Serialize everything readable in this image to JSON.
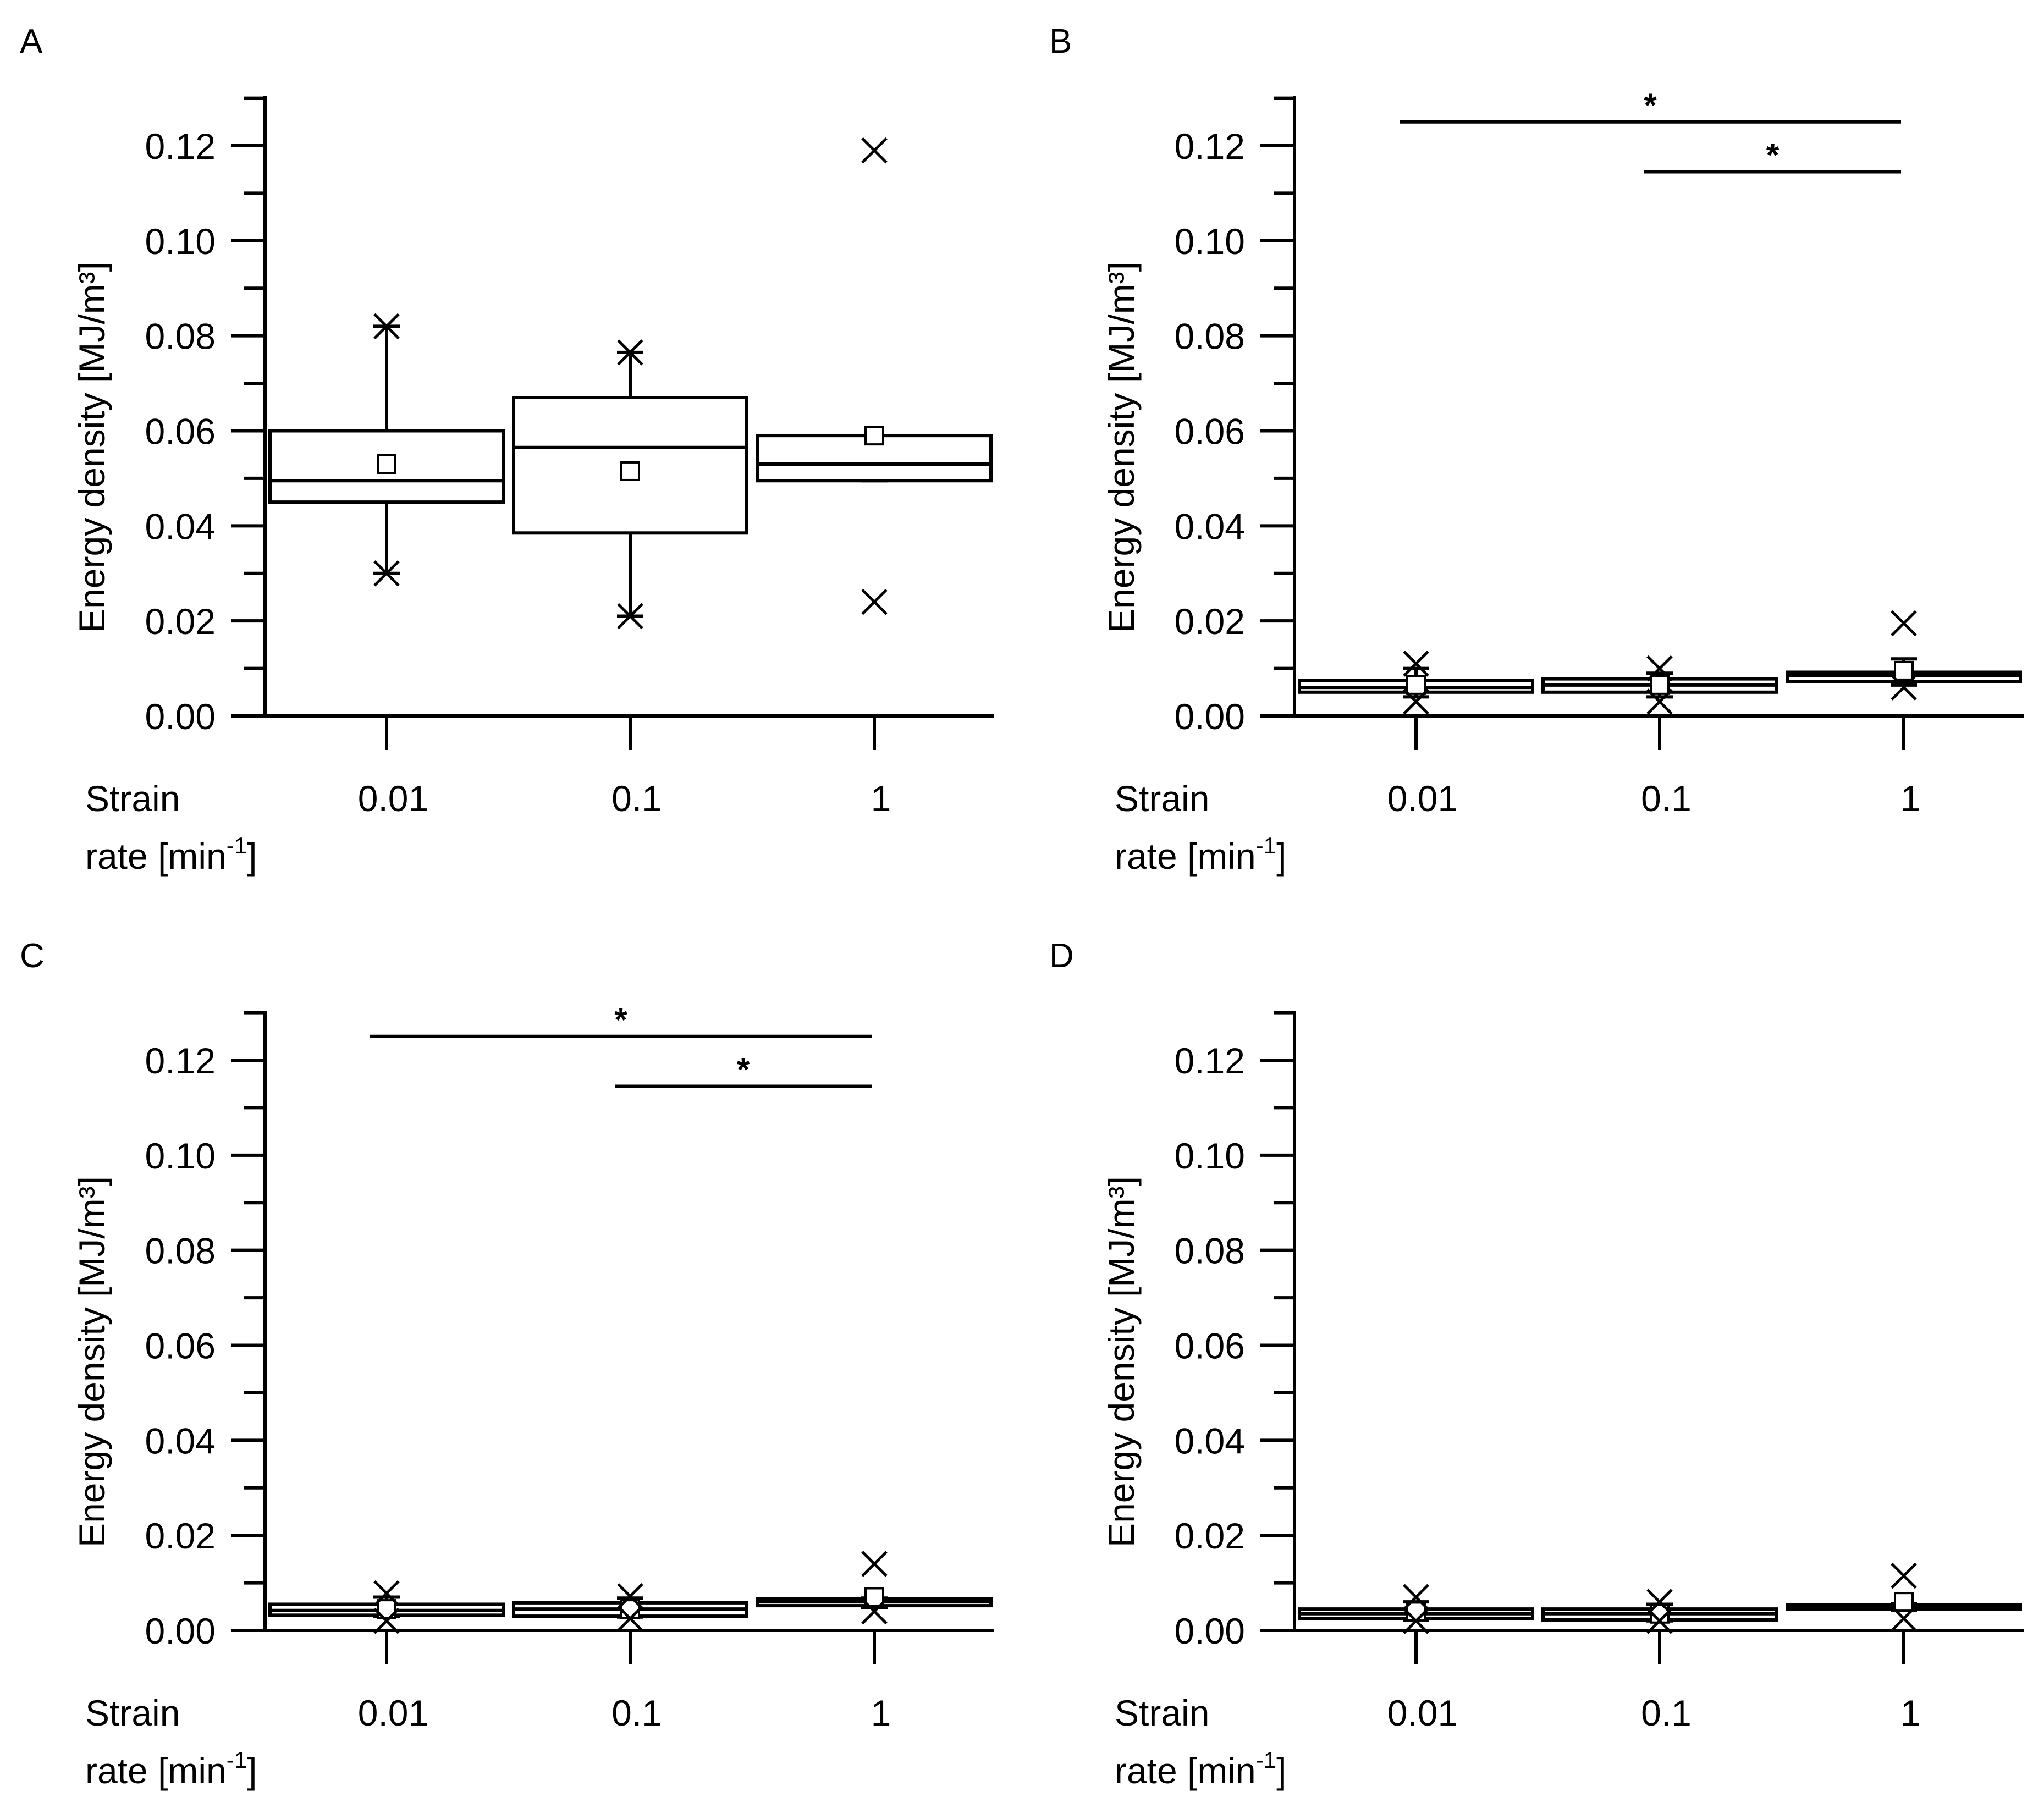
{
  "chart_data": [
    {
      "panel": "A",
      "type": "box",
      "ylabel": "Energy density [MJ/m³]",
      "xlabel_line1": "Strain",
      "xlabel_line2": "rate [min",
      "xlabel_sup": "-1",
      "xlabel_end": "]",
      "ylim": [
        0,
        0.13
      ],
      "yticks": [
        "0.00",
        "0.02",
        "0.04",
        "0.06",
        "0.08",
        "0.10",
        "0.12"
      ],
      "categories": [
        "0.01",
        "0.1",
        "1"
      ],
      "boxes": [
        {
          "q1": 0.045,
          "median": 0.0495,
          "q3": 0.06,
          "whisker_low": 0.03,
          "whisker_high": 0.082,
          "mean": 0.053,
          "outliers": [
            0.082,
            0.03
          ]
        },
        {
          "q1": 0.0385,
          "median": 0.0565,
          "q3": 0.067,
          "whisker_low": 0.021,
          "whisker_high": 0.0765,
          "mean": 0.0515,
          "outliers": [
            0.0765,
            0.021
          ]
        },
        {
          "q1": 0.0495,
          "median": 0.053,
          "q3": 0.059,
          "whisker_low": 0.0495,
          "whisker_high": 0.059,
          "mean": 0.059,
          "outliers": [
            0.119,
            0.024
          ]
        }
      ],
      "significance": []
    },
    {
      "panel": "B",
      "type": "box",
      "ylabel": "Energy density [MJ/m³]",
      "xlabel_line1": "Strain",
      "xlabel_line2": "rate [min",
      "xlabel_sup": "-1",
      "xlabel_end": "]",
      "ylim": [
        0,
        0.13
      ],
      "yticks": [
        "0.00",
        "0.02",
        "0.04",
        "0.06",
        "0.08",
        "0.10",
        "0.12"
      ],
      "categories": [
        "0.01",
        "0.1",
        "1"
      ],
      "boxes": [
        {
          "q1": 0.005,
          "median": 0.006,
          "q3": 0.0075,
          "whisker_low": 0.004,
          "whisker_high": 0.01,
          "mean": 0.0065,
          "outliers": [
            0.011,
            0.003
          ]
        },
        {
          "q1": 0.005,
          "median": 0.0065,
          "q3": 0.0078,
          "whisker_low": 0.004,
          "whisker_high": 0.009,
          "mean": 0.0065,
          "outliers": [
            0.01,
            0.003
          ]
        },
        {
          "q1": 0.0072,
          "median": 0.0085,
          "q3": 0.0092,
          "whisker_low": 0.0065,
          "whisker_high": 0.012,
          "mean": 0.0095,
          "outliers": [
            0.0195,
            0.006
          ]
        }
      ],
      "significance": [
        {
          "from": 0,
          "to": 2,
          "y": 0.125,
          "label": "*"
        },
        {
          "from": 1,
          "to": 2,
          "y": 0.1145,
          "label": "*"
        }
      ]
    },
    {
      "panel": "C",
      "type": "box",
      "ylabel": "Energy density [MJ/m³]",
      "xlabel_line1": "Strain",
      "xlabel_line2": "rate [min",
      "xlabel_sup": "-1",
      "xlabel_end": "]",
      "ylim": [
        0,
        0.13
      ],
      "yticks": [
        "0.00",
        "0.02",
        "0.04",
        "0.06",
        "0.08",
        "0.10",
        "0.12"
      ],
      "categories": [
        "0.01",
        "0.1",
        "1"
      ],
      "boxes": [
        {
          "q1": 0.0032,
          "median": 0.0042,
          "q3": 0.0055,
          "whisker_low": 0.003,
          "whisker_high": 0.007,
          "mean": 0.0045,
          "outliers": [
            0.0078,
            0.002
          ]
        },
        {
          "q1": 0.003,
          "median": 0.0045,
          "q3": 0.0058,
          "whisker_low": 0.0028,
          "whisker_high": 0.0068,
          "mean": 0.0045,
          "outliers": [
            0.0072,
            0.0025
          ]
        },
        {
          "q1": 0.0052,
          "median": 0.006,
          "q3": 0.0066,
          "whisker_low": 0.0048,
          "whisker_high": 0.0068,
          "mean": 0.007,
          "outliers": [
            0.014,
            0.004
          ]
        }
      ],
      "significance": [
        {
          "from": 0,
          "to": 2,
          "y": 0.125,
          "label": "*"
        },
        {
          "from": 1,
          "to": 2,
          "y": 0.1145,
          "label": "*"
        }
      ]
    },
    {
      "panel": "D",
      "type": "box",
      "ylabel": "Energy density [MJ/m³]",
      "xlabel_line1": "Strain",
      "xlabel_line2": "rate [min",
      "xlabel_sup": "-1",
      "xlabel_end": "]",
      "ylim": [
        0,
        0.13
      ],
      "yticks": [
        "0.00",
        "0.02",
        "0.04",
        "0.06",
        "0.08",
        "0.10",
        "0.12"
      ],
      "categories": [
        "0.01",
        "0.1",
        "1"
      ],
      "boxes": [
        {
          "q1": 0.0025,
          "median": 0.0035,
          "q3": 0.0045,
          "whisker_low": 0.0022,
          "whisker_high": 0.006,
          "mean": 0.004,
          "outliers": [
            0.007,
            0.002
          ]
        },
        {
          "q1": 0.0022,
          "median": 0.0035,
          "q3": 0.0045,
          "whisker_low": 0.002,
          "whisker_high": 0.0055,
          "mean": 0.0035,
          "outliers": [
            0.006,
            0.002
          ]
        },
        {
          "q1": 0.0045,
          "median": 0.005,
          "q3": 0.0054,
          "whisker_low": 0.0042,
          "whisker_high": 0.0056,
          "mean": 0.006,
          "outliers": [
            0.0115,
            0.0025
          ]
        }
      ],
      "significance": []
    }
  ]
}
